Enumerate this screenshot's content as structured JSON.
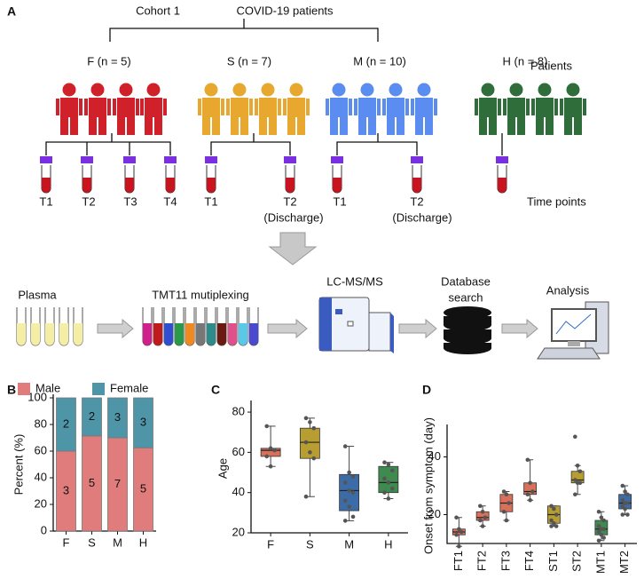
{
  "panel_a": {
    "label": "A",
    "cohort": "Cohort 1",
    "title": "COVID-19 patients",
    "groups": [
      {
        "label": "F (n = 5)",
        "times": [
          "T1",
          "T2",
          "T3",
          "T4"
        ]
      },
      {
        "label": "S (n = 7)",
        "times": [
          "T1",
          "T2"
        ],
        "note": "(Discharge)"
      },
      {
        "label": "M (n = 10)",
        "times": [
          "T1",
          "T2"
        ],
        "note": "(Discharge)"
      },
      {
        "label": "H (n = 8)"
      }
    ],
    "patients_label": "Patients",
    "time_label": "Time points",
    "workflow": [
      "Plasma",
      "TMT11 mutiplexing",
      "LC-MS/MS",
      [
        "Database",
        "search"
      ],
      "Analysis"
    ]
  },
  "chart_data": [
    {
      "type": "stacked_bar",
      "label": "B",
      "ylabel": "Percent (%)",
      "categories": [
        "F",
        "S",
        "M",
        "H"
      ],
      "ylim": [
        0,
        100
      ],
      "yticks": [
        0,
        20,
        40,
        60,
        80,
        100
      ],
      "series": [
        {
          "name": "Male",
          "color": "#e07c7c",
          "values": [
            60,
            71.4,
            70,
            62.5
          ],
          "counts": [
            3,
            5,
            7,
            5
          ]
        },
        {
          "name": "Female",
          "color": "#4f95a8",
          "values": [
            40,
            28.6,
            30,
            37.5
          ],
          "counts": [
            2,
            2,
            3,
            3
          ]
        }
      ]
    },
    {
      "type": "box",
      "label": "C",
      "ylabel": "Age",
      "categories": [
        "F",
        "S",
        "M",
        "H"
      ],
      "colors": [
        "#d9705a",
        "#b89e30",
        "#3c6ca8",
        "#3f8a4f"
      ],
      "ylim": [
        20,
        84
      ],
      "yticks": [
        20,
        40,
        60,
        80
      ],
      "boxes": [
        {
          "low": 53,
          "q1": 58,
          "median": 61,
          "q3": 62,
          "high": 73,
          "points": [
            73,
            62,
            61,
            58,
            53
          ]
        },
        {
          "low": 38,
          "q1": 57,
          "median": 65,
          "q3": 72,
          "high": 77,
          "points": [
            77,
            75,
            72,
            65,
            60,
            57,
            38
          ]
        },
        {
          "low": 26,
          "q1": 31,
          "median": 41,
          "q3": 49,
          "high": 63,
          "points": [
            63,
            50,
            48,
            45,
            41,
            40,
            36,
            33,
            28,
            26
          ]
        },
        {
          "low": 37,
          "q1": 40,
          "median": 45,
          "q3": 53,
          "high": 55,
          "points": [
            55,
            54,
            51,
            47,
            45,
            42,
            40,
            37
          ]
        }
      ]
    },
    {
      "type": "box",
      "label": "D",
      "ylabel": "Onset from symptom (day)",
      "categories": [
        "FT1",
        "FT2",
        "FT3",
        "FT4",
        "ST1",
        "ST2",
        "MT1",
        "MT2"
      ],
      "colors": [
        "#d9705a",
        "#d9705a",
        "#d9705a",
        "#d9705a",
        "#b89e30",
        "#b89e30",
        "#3f8a4f",
        "#3c6ca8"
      ],
      "ylim": [
        10,
        50
      ],
      "yticks": [
        20,
        40
      ],
      "boxes": [
        {
          "low": 9,
          "q1": 13,
          "median": 14,
          "q3": 15,
          "high": 19,
          "points": [
            19,
            15,
            14,
            13,
            9
          ]
        },
        {
          "low": 16,
          "q1": 18,
          "median": 19,
          "q3": 21,
          "high": 23,
          "points": [
            23,
            21,
            19,
            18,
            16
          ]
        },
        {
          "low": 18,
          "q1": 21,
          "median": 24,
          "q3": 27,
          "high": 28,
          "points": [
            28,
            27,
            24,
            21,
            18
          ]
        },
        {
          "low": 25,
          "q1": 27,
          "median": 28,
          "q3": 31,
          "high": 39,
          "points": [
            39,
            31,
            28,
            27,
            25
          ]
        },
        {
          "low": 16,
          "q1": 17,
          "median": 20,
          "q3": 23,
          "high": 23,
          "points": [
            23,
            22,
            20,
            18,
            17,
            16,
            16
          ]
        },
        {
          "low": 27,
          "q1": 31,
          "median": 32,
          "q3": 35,
          "high": 37,
          "points": [
            47,
            37,
            35,
            32,
            31,
            31,
            27
          ]
        },
        {
          "low": 11,
          "q1": 13,
          "median": 15,
          "q3": 18,
          "high": 21,
          "points": [
            21,
            19,
            18,
            16,
            15,
            15,
            14,
            13,
            12,
            11
          ]
        },
        {
          "low": 20,
          "q1": 22,
          "median": 24,
          "q3": 27,
          "high": 30,
          "points": [
            30,
            28,
            27,
            25,
            24,
            24,
            23,
            22,
            20,
            20
          ]
        }
      ]
    }
  ]
}
